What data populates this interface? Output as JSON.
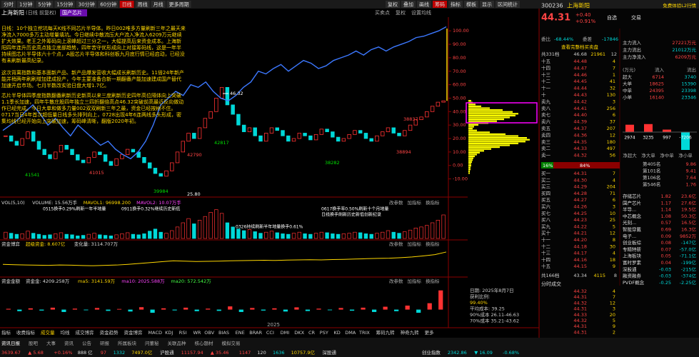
{
  "toolbar": {
    "periods": [
      "分时",
      "1分钟",
      "5分钟",
      "15分钟",
      "30分钟",
      "60分钟",
      "日线",
      "周线",
      "月线",
      "更多周期"
    ],
    "active": 6,
    "tools": [
      "复权",
      "叠加",
      "画线",
      "筹码",
      "指标",
      "模板",
      "显示",
      "区间统计"
    ]
  },
  "chart": {
    "title": "上海新阳",
    "subtitle": "(日线 前复权)",
    "tag": "国产芯片",
    "menu": [
      "买卖点",
      "复权",
      "设置均线"
    ],
    "annotation": [
      "日线：10个独立挖坑每天K线不同芯片半导体。昨日002唯多方量刷新三年之最天来净流入7000多万主动增量填坑。今日继续中散流压大户流入净流入6209万元继续扩大效果。老王之外筹码向上滚峰超过三分之一，大幅提高后来资金成本。上海新阳四年连升历史高点独立底部趋势，四年苦守优形成向上对接筹码线，这是一年半持续图芯片半导体六十个点，A股芯片半导体和科创板九月底行情已经启动，已经没有未刷新最高纪录。",
      "这次背离指数和基本面新产品、新产品爆发营收大幅成长刷新历史。11倍24年新产能并稍两年刷刷增加建成投产，今年主要准备合新一期翻番产能加速建成国产替代加速开启市场。七月半数改实验日盘大增1.7亿。",
      "芯片半导体四季度指数翻番刷新历史新高以来三度刷新历史四年高位隔体向上突破1.1季长加速，四年牛散庄股四年独立三四折翻倍高点46.32突破前高最近反向做动作已经完成。今日大单和做多力量002双双刷新三年之最，资金已经按树不住。0717当日4年首次超低量日线多头排列向上，0728出现4年6连两线多头形成，密集均线已经开始向上突破加速，筹码峰清晰，翻版2020年初。"
    ],
    "ylim": [
      -15,
      107
    ],
    "yticks": [
      {
        "value": 100,
        "label": "100.00"
      },
      {
        "value": 90,
        "label": "90.00"
      },
      {
        "value": 80,
        "label": "80.00"
      },
      {
        "value": 70,
        "label": "70.00"
      },
      {
        "value": 60,
        "label": "60.00"
      },
      {
        "value": 50,
        "label": "50.00"
      },
      {
        "value": 40,
        "label": "40.00"
      },
      {
        "value": 30,
        "label": "30.00"
      },
      {
        "value": 20,
        "label": "20.00"
      },
      {
        "value": 10,
        "label": "10.00"
      },
      {
        "value": 0,
        "label": "0.00"
      },
      {
        "value": -10,
        "label": "-10.00"
      }
    ],
    "price": {
      "up": "#ff3232",
      "down": "#00d8d8",
      "values": [
        22,
        18,
        15,
        20,
        25,
        18,
        12,
        8,
        5,
        10,
        15,
        12,
        8,
        4,
        2,
        6,
        10,
        8,
        3,
        0,
        5,
        8,
        12,
        10,
        6,
        2,
        -2,
        -6,
        -8,
        -4,
        2,
        10,
        18,
        24,
        20,
        28,
        35,
        40,
        50,
        58,
        45,
        38,
        30,
        25,
        28,
        22,
        18,
        24,
        28,
        26,
        22,
        18,
        20,
        24,
        22,
        19,
        23,
        27,
        25,
        21,
        18,
        20,
        23,
        26,
        24,
        20,
        18,
        22,
        25,
        28,
        24,
        22,
        26,
        30,
        34,
        36,
        40,
        44,
        47,
        48
      ]
    },
    "index": {
      "color": "#3c78ff",
      "values": [
        26,
        30,
        34,
        40,
        45,
        38,
        30,
        35,
        28,
        22,
        30,
        25,
        20,
        15,
        18,
        12,
        8,
        5,
        10,
        18,
        30,
        45,
        50,
        55,
        52,
        60,
        58,
        62,
        55,
        50,
        48,
        52,
        58,
        62,
        70,
        68,
        72,
        75,
        70,
        74,
        78,
        76,
        72,
        74,
        78,
        80,
        82,
        85,
        82,
        86,
        88,
        85,
        88,
        90,
        92,
        95,
        96,
        98,
        100,
        103
      ]
    },
    "notes": [
      "46.32",
      "25.80",
      "41541",
      "41015",
      "39984",
      "42790",
      "42817",
      "38837",
      "38282",
      "38894"
    ],
    "dates": [
      "2025"
    ]
  },
  "chip": {
    "color": "#ffff00",
    "box": "#ff00ff",
    "profile": [
      4,
      6,
      10,
      18,
      30,
      48,
      62,
      70,
      66,
      58,
      50,
      40,
      28,
      14,
      8,
      6,
      12,
      30,
      52,
      70,
      82,
      86,
      80,
      70,
      58,
      44,
      32,
      22,
      16,
      12,
      9,
      7,
      6,
      5,
      4,
      4,
      3,
      3,
      2,
      2
    ],
    "info": [
      "日期: 2025年8月7日",
      "获利比例:",
      "99.40%",
      "平均成本: 39.25",
      "90%成本 26.11-46.63",
      "70%成本 35.21-43.62"
    ]
  },
  "volume": {
    "header": [
      "VOL(5,10)",
      "VOLUME: 15.56万手",
      "MAVOL1: 96998.200",
      "MAVOL2: 10.07万手"
    ],
    "colors": [
      "#ddd",
      "#ddd",
      "#ffd700",
      "#ff44ff"
    ],
    "ylim": [
      0,
      60
    ],
    "values": [
      12,
      10,
      8,
      9,
      14,
      10,
      8,
      6,
      7,
      9,
      11,
      8,
      7,
      5,
      6,
      8,
      10,
      7,
      6,
      5,
      7,
      9,
      11,
      8,
      7,
      9,
      14,
      18,
      12,
      10,
      15,
      22,
      30,
      38,
      28,
      35,
      42,
      50,
      55,
      48,
      30,
      22,
      18,
      15,
      17,
      13,
      10,
      12,
      14,
      11,
      9,
      8,
      10,
      12,
      9,
      8,
      10,
      12,
      11,
      9,
      8,
      9,
      10,
      12,
      11,
      9,
      8,
      10,
      12,
      15,
      12,
      10,
      13,
      16,
      20,
      22,
      25,
      30,
      35,
      45
    ],
    "notes": [
      "0515换手0.29%刷新一年半地量",
      "0911换手0.32%继续历史新低",
      "0326持续刷新半年地量换手0.61%",
      "0617换手率0.50%刷新十个月地量",
      "日线换手刷新历史新低创新纪录"
    ]
  },
  "panel_menu": [
    "改参数",
    "加指标",
    "换指标"
  ],
  "game": {
    "header": [
      "资金博弈",
      "超级资金: 8.607亿",
      "变化量: 3114.707万"
    ],
    "colors": [
      "#ddd",
      "#ffd700",
      "#ddd"
    ],
    "color": "#ffd700",
    "ylim": [
      -50,
      100
    ],
    "values": [
      10,
      8,
      6,
      5,
      4,
      6,
      5,
      3,
      2,
      4,
      6,
      10,
      15,
      20,
      25,
      30,
      28,
      26,
      27,
      28,
      30,
      31,
      32,
      33,
      32,
      34,
      35,
      36,
      35,
      37,
      38,
      40,
      42,
      44,
      45,
      48,
      52,
      58,
      65,
      80
    ]
  },
  "funds": {
    "header": [
      "资金金额",
      "资金金: 4209.258万",
      "ma5: 3141.59万",
      "ma10: 2025.588万",
      "ma20: 572.542万"
    ],
    "colors": [
      "#ddd",
      "#ddd",
      "#ffd700",
      "#ff44ff",
      "#44ff44"
    ],
    "ylim": [
      -100,
      150
    ],
    "values": [
      5,
      -10,
      8,
      -6,
      12,
      -15,
      6,
      -4,
      10,
      -8,
      4,
      -12,
      15,
      -20,
      8,
      -5,
      12,
      -10,
      6,
      -8,
      20,
      -15,
      10,
      -6,
      8,
      -12,
      14,
      -9,
      6,
      -4,
      10,
      -7,
      12,
      -15,
      18,
      -10,
      25,
      -20,
      40,
      120
    ]
  },
  "indicators": [
    "指标",
    "收费指标",
    "成交量",
    "均线",
    "成交博弈",
    "资金趋势",
    "资金博弈",
    "MACD",
    "KDJ",
    "RSI",
    "WR",
    "OBV",
    "BIAS",
    "ENE",
    "BRAR",
    "CCI",
    "DMI",
    "DKX",
    "CR",
    "PSY",
    "KD",
    "DMA",
    "TRIX",
    "筹码九转",
    "神奇九转",
    "更多"
  ],
  "tabs": [
    "资讯日报",
    "股吧",
    "大事",
    "资讯",
    "公告",
    "研报",
    "所属板块",
    "问董秘",
    "关联品种",
    "核心题材",
    "模拟交易"
  ],
  "status": [
    {
      "text": "3639.67",
      "color": "#ff4444"
    },
    {
      "text": "▲ 5.68",
      "color": "#ff4444"
    },
    {
      "text": "+0.16%",
      "color": "#ff4444"
    },
    {
      "text": "888 亿",
      "color": "#ddd"
    },
    {
      "text": "97",
      "color": "#ff4444"
    },
    {
      "text": "1332",
      "color": "#00d8d8"
    },
    {
      "text": "7497.0亿",
      "color": "#ffd700"
    },
    {
      "text": "沪股通",
      "color": "#ddd"
    },
    {
      "text": "11157.94",
      "color": "#ff4444"
    },
    {
      "text": "▲ 35.46",
      "color": "#ff4444"
    },
    {
      "text": "1147",
      "color": "#ff4444"
    },
    {
      "text": "120",
      "color": "#ddd"
    },
    {
      "text": "1636",
      "color": "#00d8d8"
    },
    {
      "text": "10757.9亿",
      "color": "#ffd700"
    },
    {
      "text": "深股通",
      "color": "#ddd"
    },
    {
      "text": "创业指数",
      "color": "#ddd"
    },
    {
      "text": "2342.86",
      "color": "#00d8d8"
    },
    {
      "text": "▼ 16.09",
      "color": "#00d8d8"
    },
    {
      "text": "-0.68%",
      "color": "#00d8d8"
    }
  ],
  "quote": {
    "code": "300236",
    "name": "上海新阳",
    "promo": "免费体验L2行情",
    "price": "44.31",
    "change": "+0.40",
    "pct": "+0.91%",
    "buttons": [
      "自选",
      "交易"
    ],
    "ratio": [
      "委比",
      "-68.44%",
      "委差",
      "-17846"
    ],
    "full_book": "查看完整档买卖盘",
    "sell_total": [
      "共331档",
      "46.68",
      "21961",
      "12"
    ],
    "sell": [
      [
        "十五",
        "44.48",
        "4"
      ],
      [
        "十四",
        "44.47",
        "7"
      ],
      [
        "十三",
        "44.46",
        "1"
      ],
      [
        "十二",
        "44.45",
        "41"
      ],
      [
        "十一",
        "44.44",
        "32"
      ],
      [
        "十",
        "44.43",
        "130"
      ],
      [
        "卖九",
        "44.42",
        "3"
      ],
      [
        "卖八",
        "44.41",
        "256"
      ],
      [
        "卖七",
        "44.40",
        "6"
      ],
      [
        "卖六",
        "44.39",
        "37"
      ],
      [
        "卖五",
        "44.37",
        "207"
      ],
      [
        "卖四",
        "44.36",
        "12"
      ],
      [
        "卖三",
        "44.35",
        "180"
      ],
      [
        "卖二",
        "44.33",
        "497"
      ],
      [
        "卖一",
        "44.32",
        "56"
      ]
    ],
    "buy_ratio": [
      "16%",
      "84%"
    ],
    "buy": [
      [
        "买一",
        "44.31",
        "7"
      ],
      [
        "买二",
        "44.30",
        "4"
      ],
      [
        "买三",
        "44.29",
        "204"
      ],
      [
        "买四",
        "44.28",
        "71"
      ],
      [
        "买五",
        "44.27",
        "6"
      ],
      [
        "买六",
        "44.26",
        "3"
      ],
      [
        "买七",
        "44.25",
        "10"
      ],
      [
        "买八",
        "44.23",
        "25"
      ],
      [
        "买九",
        "44.22",
        "5"
      ],
      [
        "买十",
        "44.21",
        "12"
      ],
      [
        "十一",
        "44.20",
        "8"
      ],
      [
        "十二",
        "44.18",
        "30"
      ],
      [
        "十三",
        "44.17",
        "4"
      ],
      [
        "十四",
        "44.16",
        "18"
      ],
      [
        "十五",
        "44.15",
        "9"
      ]
    ],
    "buy_total": [
      "共166档",
      "43.34",
      "4115",
      "8"
    ]
  },
  "flow": {
    "rows": [
      [
        "主力流入",
        "27221万元"
      ],
      [
        "主力流出",
        "21012万元"
      ],
      [
        "主力净流入",
        "6209万元"
      ]
    ],
    "head": [
      "(万元)",
      "流入",
      "流出"
    ],
    "table": [
      [
        "超大",
        "6714",
        "3740"
      ],
      [
        "大单",
        "18625",
        "15390"
      ],
      [
        "中单",
        "24395",
        "23398"
      ],
      [
        "小单",
        "16140",
        "23346"
      ]
    ],
    "net": {
      "labels": [
        "净超大",
        "净大单",
        "净中单",
        "净小单"
      ],
      "values": [
        2974,
        3235,
        997,
        -7206
      ],
      "colors": [
        "#ff3232",
        "#ff3232",
        "#ff3232",
        "#00d8d8"
      ]
    },
    "ranks": [
      [
        "第405名",
        "9.86"
      ],
      [
        "第101名",
        "9.41"
      ],
      [
        "第106名",
        "7.64"
      ],
      [
        "第546名",
        "1.76"
      ]
    ],
    "sectors": [
      [
        "存储芯片",
        "1.82",
        "23.6亿"
      ],
      [
        "国产芯片",
        "1.17",
        "27.6亿"
      ],
      [
        "半导...",
        "1.14",
        "19.5亿"
      ],
      [
        "中芯概念",
        "1.08",
        "50.3亿"
      ],
      [
        "光刻...",
        "0.57",
        "16.5亿"
      ],
      [
        "智能穿戴",
        "0.69",
        "16.3亿"
      ],
      [
        "电子...",
        "0.09",
        "9852万"
      ],
      [
        "创业板综",
        "0.08",
        "-147亿"
      ],
      [
        "专精特新",
        "0.07",
        "-57.0亿"
      ],
      [
        "上海板块",
        "0.05",
        "-71.1亿"
      ],
      [
        "富时罗素",
        "0.04",
        "-199亿"
      ],
      [
        "深股通",
        "-0.03",
        "-215亿"
      ],
      [
        "融资融券",
        "-0.03",
        "-374亿"
      ],
      [
        "PVDF概念",
        "-0.25",
        "-2.25亿"
      ]
    ]
  },
  "trades": {
    "title": "分时成交",
    "rows": [
      [
        "44.32",
        "4"
      ],
      [
        "44.31",
        "7"
      ],
      [
        "44.32",
        "12"
      ],
      [
        "44.31",
        "3"
      ],
      [
        "44.33",
        "20"
      ],
      [
        "44.32",
        "5"
      ],
      [
        "44.31",
        "9"
      ],
      [
        "44.31",
        "2"
      ]
    ]
  }
}
